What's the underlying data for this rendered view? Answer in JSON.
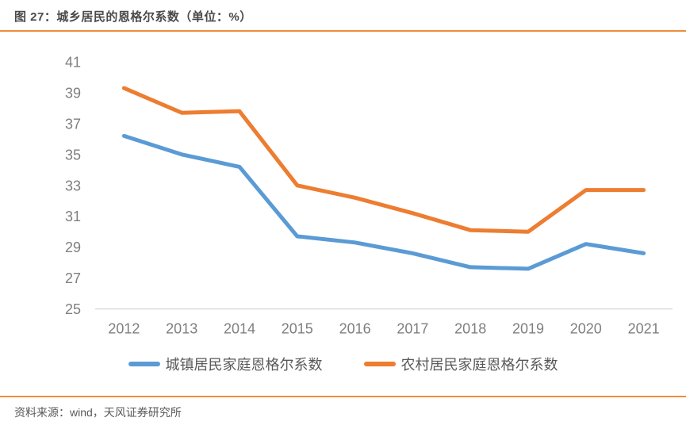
{
  "page": {
    "title": "图 27：城乡居民的恩格尔系数（单位：%）",
    "source": "资料来源：wind，天风证券研究所"
  },
  "colors": {
    "accent_rule": "#f08b3c",
    "axis_line": "#d9d9d9",
    "axis_text": "#7f7f7f",
    "title_text": "#4a4a4a",
    "legend_text": "#595959",
    "urban_series": "#5B9BD5",
    "rural_series": "#ED7D31"
  },
  "chart_data": {
    "type": "line",
    "title": "城乡居民的恩格尔系数",
    "unit": "%",
    "categories": [
      "2012",
      "2013",
      "2014",
      "2015",
      "2016",
      "2017",
      "2018",
      "2019",
      "2020",
      "2021"
    ],
    "series": [
      {
        "name": "城镇居民家庭恩格尔系数",
        "color": "#5B9BD5",
        "values": [
          36.2,
          35.0,
          34.2,
          29.7,
          29.3,
          28.6,
          27.7,
          27.6,
          29.2,
          28.6
        ]
      },
      {
        "name": "农村居民家庭恩格尔系数",
        "color": "#ED7D31",
        "values": [
          39.3,
          37.7,
          37.8,
          33.0,
          32.2,
          31.2,
          30.1,
          30.0,
          32.7,
          32.7
        ]
      }
    ],
    "xlabel": "",
    "ylabel": "",
    "ylim": [
      25,
      41
    ],
    "ytick_step": 2,
    "yticks": [
      25,
      27,
      29,
      31,
      33,
      35,
      37,
      39,
      41
    ],
    "grid": false,
    "legend_position": "bottom"
  }
}
